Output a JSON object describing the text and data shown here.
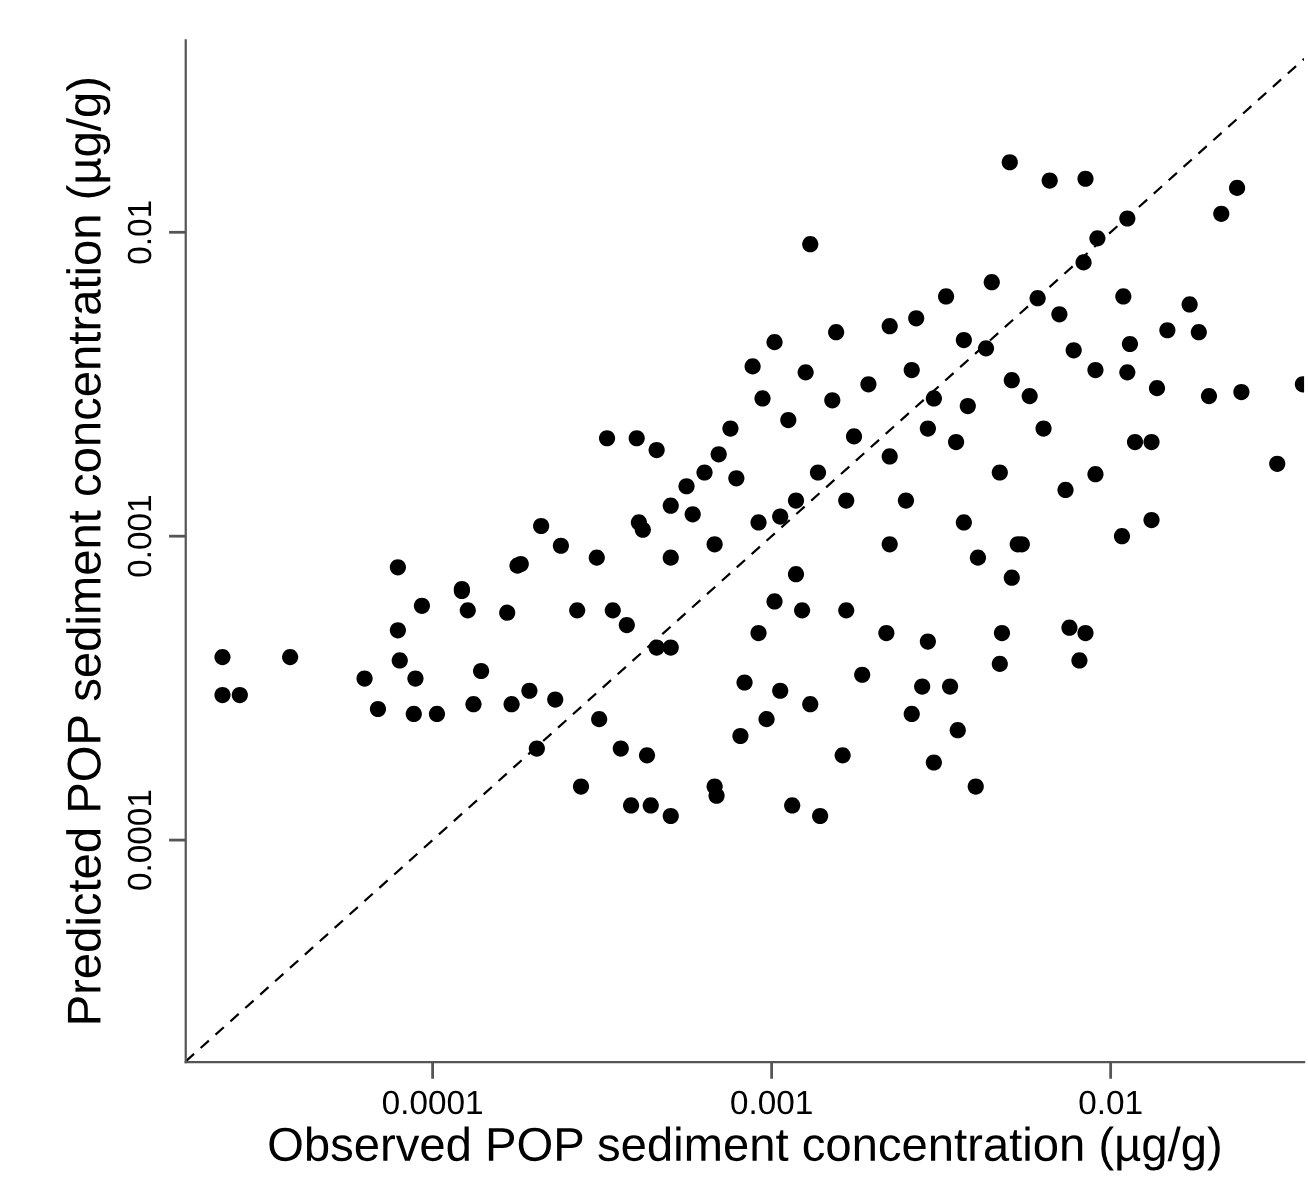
{
  "chart_data": {
    "type": "scatter",
    "xlabel": "Observed POP sediment concentration (µg/g)",
    "ylabel": "Predicted POP sediment concentration (µg/g)",
    "log": "xy",
    "xlim": [
      1.87e-05,
      0.0372
    ],
    "ylim": [
      1.86e-05,
      0.0428
    ],
    "xticks": [
      0.0001,
      0.001,
      0.01
    ],
    "yticks": [
      0.0001,
      0.001,
      0.01
    ],
    "grid": false,
    "legend": false,
    "series": [
      {
        "color": "#000000",
        "marker": "circle",
        "x": [
          2.4e-05,
          2.4e-05,
          2.7e-05,
          3.8e-05,
          6.3e-05,
          6.9e-05,
          7.9e-05,
          7.9e-05,
          8e-05,
          8.9e-05,
          8.8e-05,
          9.3e-05,
          0.000103,
          0.000122,
          0.000139,
          0.000132,
          0.000166,
          0.000178,
          0.000209,
          0.000193,
          0.000203,
          0.000239,
          0.00023,
          0.000274,
          0.000305,
          0.00031,
          0.000359,
          0.000385,
          0.00044,
          0.000504,
          0.000429,
          0.000458,
          0.000374,
          0.000417,
          0.000585,
          0.000679,
          0.000688,
          0.000832,
          0.000809,
          0.000966,
          0.00102,
          0.00106,
          0.00115,
          0.00139,
          0.00162,
          0.0013,
          0.00123,
          0.00166,
          0.00185,
          0.00218,
          0.00259,
          0.00278,
          0.00301,
          0.00336,
          0.00354,
          0.004,
          0.00471,
          0.00478,
          0.00511,
          0.00756,
          0.00843,
          0.00809,
          0.0108,
          0.0132,
          0.00289,
          0.00369,
          0.00223,
          0.000679,
          0.000504,
          0.00034,
          0.000267,
          0.000171,
          0.000127,
          0.000504,
          0.000915,
          0.00118,
          0.00406,
          0.00547,
          0.00504,
          0.00661,
          0.00843,
          0.0236,
          0.0212,
          0.0112,
          0.0013,
          0.00914,
          0.00832,
          0.00327,
          0.00446,
          0.00609,
          0.00706,
          0.0109,
          0.0171,
          0.0182,
          0.0147,
          0.00267,
          0.00223,
          0.00155,
          0.00102,
          0.000879,
          0.00369,
          0.00429,
          0.00778,
          0.0114,
          0.00902,
          0.0112,
          0.0137,
          0.0195,
          0.0243,
          0.0369,
          0.031,
          0.0118,
          0.0132,
          0.00902,
          0.00736,
          0.00577,
          0.00511,
          0.00634,
          0.00471,
          0.00532,
          0.00126,
          0.00151,
          0.00193,
          0.00259,
          0.00301,
          0.00379,
          0.00094,
          0.00112,
          0.000756,
          0.000698,
          0.000787,
          0.000634,
          0.000327,
          0.0004,
          0.000458,
          0.000561,
          0.00137,
          0.00175,
          0.00223,
          0.00289,
          0.0035,
          0.00249,
          0.00166,
          0.00118,
          0.00106,
          0.000915,
          0.000504,
          0.000406,
          0.000182,
          0.000122
        ],
        "values": [
          0.0004,
          0.0003,
          0.0003,
          0.0004,
          0.00034,
          0.00027,
          0.00079,
          0.00049,
          0.00039,
          0.00034,
          0.00026,
          0.00059,
          0.00026,
          0.00066,
          0.00036,
          0.00028,
          0.00056,
          0.0008,
          0.00108,
          0.00031,
          0.0002,
          0.00093,
          0.00029,
          0.00015,
          0.00085,
          0.00025,
          0.0002,
          0.00013,
          0.00013,
          0.00012,
          0.00019,
          0.00043,
          0.00051,
          0.00105,
          0.00118,
          0.00015,
          0.00014,
          0.00033,
          0.00022,
          0.00025,
          0.00061,
          0.00031,
          0.00013,
          0.00012,
          0.00019,
          0.00028,
          0.00057,
          0.00057,
          0.00035,
          0.00048,
          0.00026,
          0.00032,
          0.00018,
          0.00032,
          0.00023,
          0.00015,
          0.00038,
          0.00048,
          0.00073,
          0.0005,
          0.00048,
          0.00039,
          0.001,
          0.00113,
          0.00045,
          0.00111,
          0.00094,
          0.00094,
          0.00085,
          0.00057,
          0.00057,
          0.00028,
          0.00057,
          0.00043,
          0.00048,
          0.00075,
          0.00085,
          0.00094,
          0.017,
          0.0148,
          0.015,
          0.014,
          0.0115,
          0.0111,
          0.00914,
          0.00955,
          0.00796,
          0.00615,
          0.00685,
          0.00607,
          0.00537,
          0.00615,
          0.00579,
          0.00469,
          0.00476,
          0.00521,
          0.00491,
          0.00469,
          0.00435,
          0.00362,
          0.00442,
          0.00415,
          0.00409,
          0.00429,
          0.00352,
          0.00346,
          0.00307,
          0.00289,
          0.00298,
          0.00316,
          0.00173,
          0.00204,
          0.00204,
          0.0016,
          0.00142,
          0.00289,
          0.00326,
          0.00226,
          0.00162,
          0.00094,
          0.00346,
          0.0028,
          0.00316,
          0.00352,
          0.00284,
          0.00268,
          0.00284,
          0.00241,
          0.00226,
          0.00186,
          0.00155,
          0.00162,
          0.0021,
          0.0021,
          0.00192,
          0.00146,
          0.00162,
          0.00213,
          0.00183,
          0.00226,
          0.00204,
          0.00131,
          0.00131,
          0.00131,
          0.00116,
          0.00111,
          0.00126,
          0.00111,
          0.00081,
          0.00067
        ]
      },
      {
        "type": "line",
        "color": "#000000",
        "line_style": "dashed",
        "marker": "none",
        "x": [
          1.87e-05,
          0.0372
        ],
        "values": [
          1.87e-05,
          0.0372
        ]
      }
    ]
  }
}
